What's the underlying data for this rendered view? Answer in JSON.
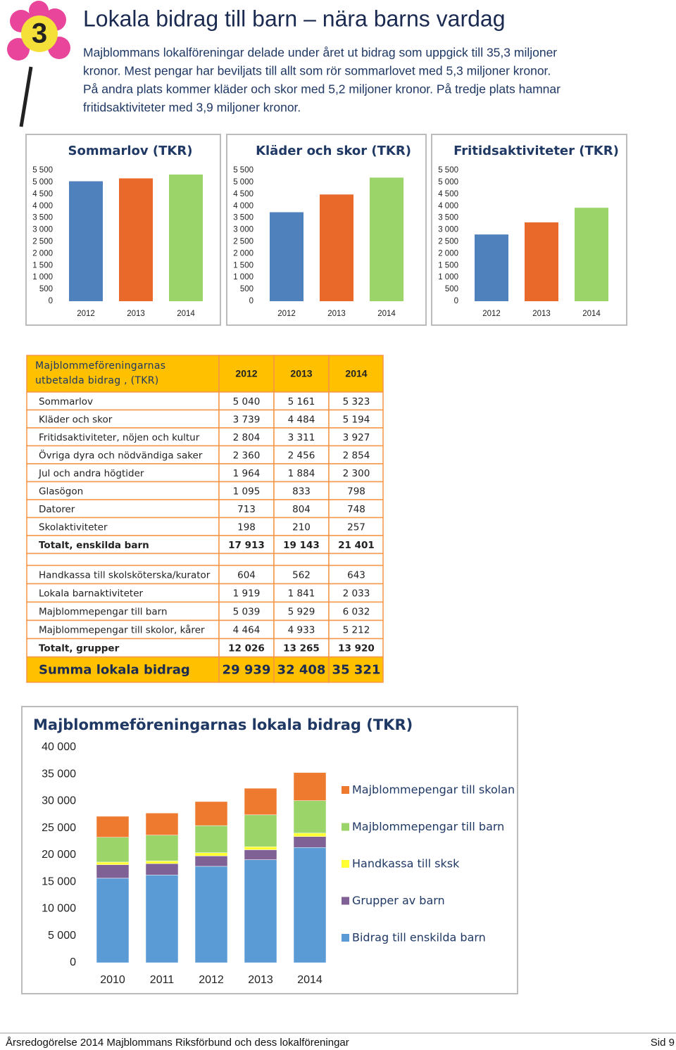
{
  "header": {
    "title": "Lokala bidrag till barn – nära barns vardag",
    "logo_text": "3"
  },
  "intro": [
    "Majblommans lokalföreningar delade under året ut bidrag som uppgick till 35,3 miljoner",
    "kronor. Mest pengar har beviljats till allt som rör sommarlovet med  5,3 miljoner kronor.",
    "På andra plats kommer kläder och skor med 5,2 miljoner kronor. På tredje plats hamnar",
    "fritidsaktiviteter med 3,9  miljoner kronor."
  ],
  "chart_data": [
    {
      "type": "bar",
      "title": "Sommarlov (TKR)",
      "categories": [
        "2012",
        "2013",
        "2014"
      ],
      "values": [
        5040,
        5161,
        5323
      ],
      "colors": [
        "#4f81bd",
        "#e8692a",
        "#9bd56a"
      ],
      "ylim": [
        0,
        5500
      ],
      "yticks": [
        0,
        500,
        {
          "value": 1000,
          "label": "1 000"
        },
        {
          "value": 1500,
          "label": "1 500"
        },
        {
          "value": 2000,
          "label": "2 000"
        },
        {
          "value": 2500,
          "label": "2 500"
        },
        {
          "value": 3000,
          "label": "3 000"
        },
        {
          "value": 3500,
          "label": "3 500"
        },
        {
          "value": 4000,
          "label": "4 000"
        },
        {
          "value": 4500,
          "label": "4 500"
        },
        {
          "value": 5000,
          "label": "5 000"
        },
        {
          "value": 5500,
          "label": "5 500"
        }
      ]
    },
    {
      "type": "bar",
      "title": "Kläder och skor (TKR)",
      "categories": [
        "2012",
        "2013",
        "2014"
      ],
      "values": [
        3739,
        4484,
        5194
      ],
      "colors": [
        "#4f81bd",
        "#e8692a",
        "#9bd56a"
      ],
      "ylim": [
        0,
        5500
      ],
      "yticks": [
        0,
        500,
        {
          "value": 1000,
          "label": "1 000"
        },
        {
          "value": 1500,
          "label": "1 500"
        },
        {
          "value": 2000,
          "label": "2 000"
        },
        {
          "value": 2500,
          "label": "2 500"
        },
        {
          "value": 3000,
          "label": "3 000"
        },
        {
          "value": 3500,
          "label": "3 500"
        },
        {
          "value": 4000,
          "label": "4 000"
        },
        {
          "value": 4500,
          "label": "4 500"
        },
        {
          "value": 5000,
          "label": "5 000"
        },
        {
          "value": 5500,
          "label": "5 500"
        }
      ]
    },
    {
      "type": "bar",
      "title": "Fritidsaktiviteter (TKR)",
      "categories": [
        "2012",
        "2013",
        "2014"
      ],
      "values": [
        2804,
        3311,
        3927
      ],
      "colors": [
        "#4f81bd",
        "#e8692a",
        "#9bd56a"
      ],
      "ylim": [
        0,
        5500
      ],
      "yticks": [
        0,
        500,
        {
          "value": 1000,
          "label": "1 000"
        },
        {
          "value": 1500,
          "label": "1 500"
        },
        {
          "value": 2000,
          "label": "2 000"
        },
        {
          "value": 2500,
          "label": "2 500"
        },
        {
          "value": 3000,
          "label": "3 000"
        },
        {
          "value": 3500,
          "label": "3 500"
        },
        {
          "value": 4000,
          "label": "4 000"
        },
        {
          "value": 4500,
          "label": "4 500"
        },
        {
          "value": 5000,
          "label": "5 000"
        },
        {
          "value": 5500,
          "label": "5 500"
        }
      ]
    },
    {
      "type": "stacked_bar",
      "title": "Majblommeföreningarnas lokala bidrag (TKR)",
      "categories": [
        "2010",
        "2011",
        "2012",
        "2013",
        "2014"
      ],
      "series": [
        {
          "name": "Bidrag till enskilda barn",
          "color": "#5b9bd5",
          "values": [
            15700,
            16300,
            17913,
            19143,
            21401
          ]
        },
        {
          "name": "Grupper av barn",
          "color": "#7f6195",
          "values": [
            2500,
            2100,
            1919,
            1841,
            2033
          ]
        },
        {
          "name": "Handkassa till sksk",
          "color": "#ffff33",
          "values": [
            500,
            500,
            604,
            562,
            643
          ]
        },
        {
          "name": "Majblommepengar till barn",
          "color": "#9bd56a",
          "values": [
            4600,
            4800,
            5039,
            5929,
            6032
          ]
        },
        {
          "name": "Majblommepengar till skolan",
          "color": "#ee7a30",
          "values": [
            3900,
            4100,
            4464,
            4933,
            5212
          ]
        }
      ],
      "ylim": [
        0,
        40000
      ],
      "yticks": [
        0,
        {
          "value": 5000,
          "label": "5 000"
        },
        {
          "value": 10000,
          "label": "10 000"
        },
        {
          "value": 15000,
          "label": "15 000"
        },
        {
          "value": 20000,
          "label": "20 000"
        },
        {
          "value": 25000,
          "label": "25 000"
        },
        {
          "value": 30000,
          "label": "30 000"
        },
        {
          "value": 35000,
          "label": "35 000"
        },
        {
          "value": 40000,
          "label": "40 000"
        }
      ],
      "legend": "right"
    }
  ],
  "table": {
    "header": [
      "Majblommeföreningarnas utbetalda bidrag , (TKR)",
      "2012",
      "2013",
      "2014"
    ],
    "rows": [
      [
        "Sommarlov",
        "5 040",
        "5 161",
        "5 323"
      ],
      [
        "Kläder och skor",
        "3 739",
        "4 484",
        "5 194"
      ],
      [
        "Fritidsaktiviteter, nöjen och kultur",
        "2 804",
        "3 311",
        "3 927"
      ],
      [
        "Övriga dyra och nödvändiga saker",
        "2 360",
        "2 456",
        "2 854"
      ],
      [
        "Jul och andra högtider",
        "1 964",
        "1 884",
        "2 300"
      ],
      [
        "Glasögon",
        "1 095",
        "833",
        "798"
      ],
      [
        "Datorer",
        "713",
        "804",
        "748"
      ],
      [
        "Skolaktiviteter",
        "198",
        "210",
        "257"
      ],
      [
        "Totalt, enskilda barn",
        "17 913",
        "19 143",
        "21 401"
      ],
      [
        "Handkassa till skolsköterska/kurator",
        "604",
        "562",
        "643"
      ],
      [
        "Lokala barnaktiviteter",
        "1 919",
        "1 841",
        "2 033"
      ],
      [
        "Majblommepengar till barn",
        "5 039",
        "5 929",
        "6 032"
      ],
      [
        "Majblommepengar till skolor, kårer",
        "4 464",
        "4 933",
        "5 212"
      ],
      [
        "Totalt, grupper",
        "12 026",
        "13 265",
        "13 920"
      ],
      [
        "Summa lokala bidrag",
        "29 939",
        "32 408",
        "35 321"
      ]
    ]
  },
  "footer": {
    "left": "Årsredogörelse 2014 Majblommans Riksförbund och dess lokalföreningar",
    "right": "Sid 9"
  }
}
